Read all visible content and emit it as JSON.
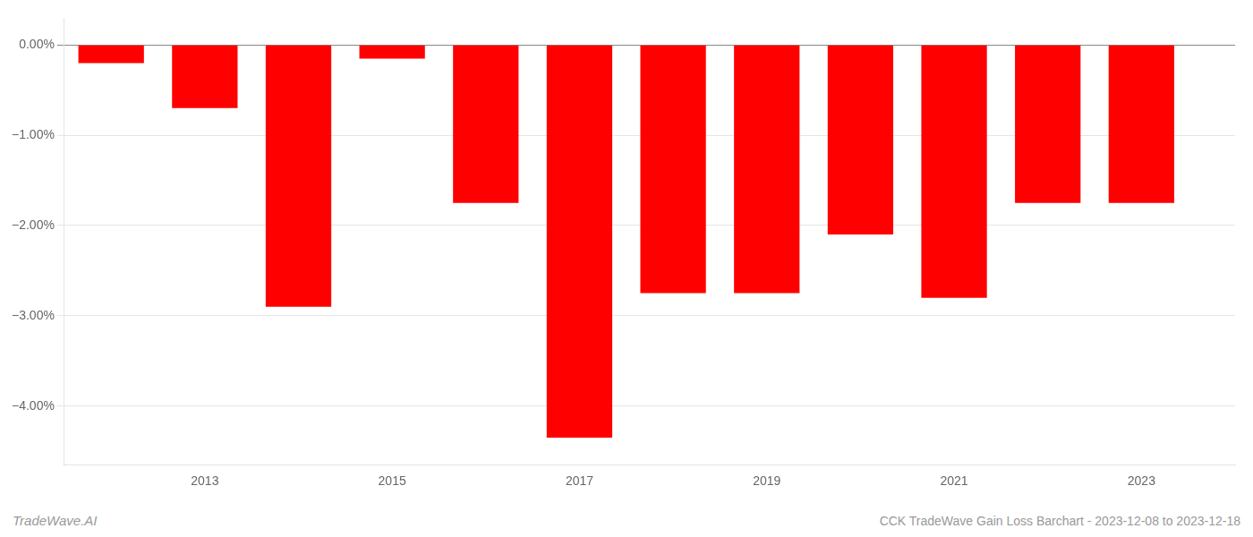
{
  "chart_data": {
    "type": "bar",
    "x": [
      2012,
      2013,
      2014,
      2015,
      2016,
      2017,
      2018,
      2019,
      2020,
      2021,
      2022,
      2023
    ],
    "values": [
      -0.2,
      -0.7,
      -2.9,
      -0.15,
      -1.75,
      -4.35,
      -2.75,
      -2.75,
      -2.1,
      -2.8,
      -1.75,
      -1.75
    ],
    "color": "#ff0000",
    "xlim": [
      2011.5,
      2024.0
    ],
    "xticks": [
      2013,
      2015,
      2017,
      2019,
      2021,
      2023
    ],
    "ylim": [
      -4.65,
      0.3
    ],
    "yticks": [
      {
        "value": 0.0,
        "label": "0.00%"
      },
      {
        "value": -1.0,
        "label": "−1.00%"
      },
      {
        "value": -2.0,
        "label": "−2.00%"
      },
      {
        "value": -3.0,
        "label": "−3.00%"
      },
      {
        "value": -4.0,
        "label": "−4.00%"
      }
    ],
    "grid": true,
    "annotations": [
      "TradeWave.AI",
      "CCK TradeWave Gain Loss Barchart - 2023-12-08 to 2023-12-18"
    ]
  }
}
